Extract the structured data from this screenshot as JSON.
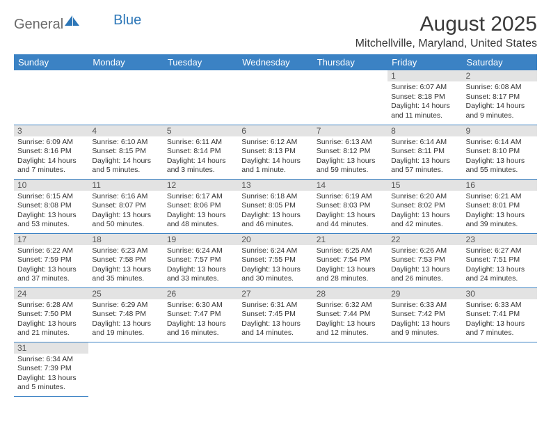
{
  "logo": {
    "part1": "General",
    "part2": "Blue"
  },
  "title": "August 2025",
  "location": "Mitchellville, Maryland, United States",
  "colors": {
    "header_bg": "#3b82c4",
    "header_fg": "#ffffff",
    "daynum_bg": "#e3e3e3",
    "border": "#3b82c4",
    "logo_gray": "#6a6a6a",
    "logo_blue": "#2d77b8"
  },
  "weekdays": [
    "Sunday",
    "Monday",
    "Tuesday",
    "Wednesday",
    "Thursday",
    "Friday",
    "Saturday"
  ],
  "weeks": [
    [
      null,
      null,
      null,
      null,
      null,
      {
        "n": "1",
        "sr": "6:07 AM",
        "ss": "8:18 PM",
        "dl": "14 hours and 11 minutes."
      },
      {
        "n": "2",
        "sr": "6:08 AM",
        "ss": "8:17 PM",
        "dl": "14 hours and 9 minutes."
      }
    ],
    [
      {
        "n": "3",
        "sr": "6:09 AM",
        "ss": "8:16 PM",
        "dl": "14 hours and 7 minutes."
      },
      {
        "n": "4",
        "sr": "6:10 AM",
        "ss": "8:15 PM",
        "dl": "14 hours and 5 minutes."
      },
      {
        "n": "5",
        "sr": "6:11 AM",
        "ss": "8:14 PM",
        "dl": "14 hours and 3 minutes."
      },
      {
        "n": "6",
        "sr": "6:12 AM",
        "ss": "8:13 PM",
        "dl": "14 hours and 1 minute."
      },
      {
        "n": "7",
        "sr": "6:13 AM",
        "ss": "8:12 PM",
        "dl": "13 hours and 59 minutes."
      },
      {
        "n": "8",
        "sr": "6:14 AM",
        "ss": "8:11 PM",
        "dl": "13 hours and 57 minutes."
      },
      {
        "n": "9",
        "sr": "6:14 AM",
        "ss": "8:10 PM",
        "dl": "13 hours and 55 minutes."
      }
    ],
    [
      {
        "n": "10",
        "sr": "6:15 AM",
        "ss": "8:08 PM",
        "dl": "13 hours and 53 minutes."
      },
      {
        "n": "11",
        "sr": "6:16 AM",
        "ss": "8:07 PM",
        "dl": "13 hours and 50 minutes."
      },
      {
        "n": "12",
        "sr": "6:17 AM",
        "ss": "8:06 PM",
        "dl": "13 hours and 48 minutes."
      },
      {
        "n": "13",
        "sr": "6:18 AM",
        "ss": "8:05 PM",
        "dl": "13 hours and 46 minutes."
      },
      {
        "n": "14",
        "sr": "6:19 AM",
        "ss": "8:03 PM",
        "dl": "13 hours and 44 minutes."
      },
      {
        "n": "15",
        "sr": "6:20 AM",
        "ss": "8:02 PM",
        "dl": "13 hours and 42 minutes."
      },
      {
        "n": "16",
        "sr": "6:21 AM",
        "ss": "8:01 PM",
        "dl": "13 hours and 39 minutes."
      }
    ],
    [
      {
        "n": "17",
        "sr": "6:22 AM",
        "ss": "7:59 PM",
        "dl": "13 hours and 37 minutes."
      },
      {
        "n": "18",
        "sr": "6:23 AM",
        "ss": "7:58 PM",
        "dl": "13 hours and 35 minutes."
      },
      {
        "n": "19",
        "sr": "6:24 AM",
        "ss": "7:57 PM",
        "dl": "13 hours and 33 minutes."
      },
      {
        "n": "20",
        "sr": "6:24 AM",
        "ss": "7:55 PM",
        "dl": "13 hours and 30 minutes."
      },
      {
        "n": "21",
        "sr": "6:25 AM",
        "ss": "7:54 PM",
        "dl": "13 hours and 28 minutes."
      },
      {
        "n": "22",
        "sr": "6:26 AM",
        "ss": "7:53 PM",
        "dl": "13 hours and 26 minutes."
      },
      {
        "n": "23",
        "sr": "6:27 AM",
        "ss": "7:51 PM",
        "dl": "13 hours and 24 minutes."
      }
    ],
    [
      {
        "n": "24",
        "sr": "6:28 AM",
        "ss": "7:50 PM",
        "dl": "13 hours and 21 minutes."
      },
      {
        "n": "25",
        "sr": "6:29 AM",
        "ss": "7:48 PM",
        "dl": "13 hours and 19 minutes."
      },
      {
        "n": "26",
        "sr": "6:30 AM",
        "ss": "7:47 PM",
        "dl": "13 hours and 16 minutes."
      },
      {
        "n": "27",
        "sr": "6:31 AM",
        "ss": "7:45 PM",
        "dl": "13 hours and 14 minutes."
      },
      {
        "n": "28",
        "sr": "6:32 AM",
        "ss": "7:44 PM",
        "dl": "13 hours and 12 minutes."
      },
      {
        "n": "29",
        "sr": "6:33 AM",
        "ss": "7:42 PM",
        "dl": "13 hours and 9 minutes."
      },
      {
        "n": "30",
        "sr": "6:33 AM",
        "ss": "7:41 PM",
        "dl": "13 hours and 7 minutes."
      }
    ],
    [
      {
        "n": "31",
        "sr": "6:34 AM",
        "ss": "7:39 PM",
        "dl": "13 hours and 5 minutes."
      },
      null,
      null,
      null,
      null,
      null,
      null
    ]
  ],
  "labels": {
    "sunrise": "Sunrise:",
    "sunset": "Sunset:",
    "daylight": "Daylight:"
  }
}
